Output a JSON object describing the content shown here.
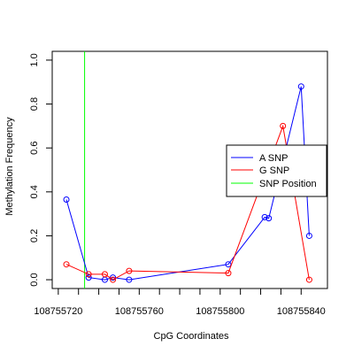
{
  "chart_data": {
    "type": "line",
    "title": "",
    "xlabel": "CpG Coordinates",
    "ylabel": "Methylation Frequency",
    "xlim": [
      108755717,
      108755853
    ],
    "ylim": [
      -0.04,
      1.04
    ],
    "x_ticks": [
      108755720,
      108755760,
      108755800,
      108755840
    ],
    "x_minor_ticks": [
      108755730,
      108755740,
      108755750,
      108755770,
      108755780,
      108755790,
      108755810,
      108755820,
      108755830
    ],
    "x_tick_labels": [
      "108755720",
      "108755760",
      "108755800",
      "108755840"
    ],
    "y_ticks": [
      0.0,
      0.2,
      0.4,
      0.6,
      0.8,
      1.0
    ],
    "y_tick_labels": [
      "0.0",
      "0.2",
      "0.4",
      "0.6",
      "0.8",
      "1.0"
    ],
    "grid": false,
    "legend_position": "right",
    "snp_position": 108755733,
    "series": [
      {
        "name": "A SNP",
        "color": "#0000ff",
        "points": [
          {
            "x": 108755724,
            "y": 0.365
          },
          {
            "x": 108755735,
            "y": 0.01
          },
          {
            "x": 108755743,
            "y": 0.0
          },
          {
            "x": 108755747,
            "y": 0.01
          },
          {
            "x": 108755755,
            "y": 0.0
          },
          {
            "x": 108755804,
            "y": 0.07
          },
          {
            "x": 108755822,
            "y": 0.285
          },
          {
            "x": 108755824,
            "y": 0.28
          },
          {
            "x": 108755840,
            "y": 0.88
          },
          {
            "x": 108755844,
            "y": 0.2
          }
        ]
      },
      {
        "name": "G SNP",
        "color": "#ff0000",
        "points": [
          {
            "x": 108755724,
            "y": 0.07
          },
          {
            "x": 108755735,
            "y": 0.025
          },
          {
            "x": 108755743,
            "y": 0.025
          },
          {
            "x": 108755747,
            "y": 0.0
          },
          {
            "x": 108755755,
            "y": 0.04
          },
          {
            "x": 108755804,
            "y": 0.03
          },
          {
            "x": 108755831,
            "y": 0.7
          },
          {
            "x": 108755844,
            "y": 0.0
          }
        ]
      }
    ],
    "snp_series": {
      "name": "SNP Position",
      "color": "#00ff00"
    }
  }
}
